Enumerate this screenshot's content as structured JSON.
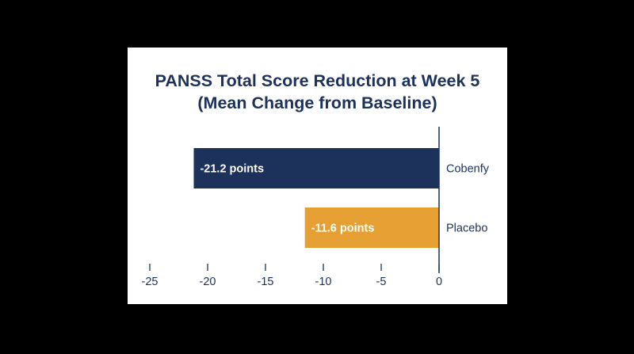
{
  "chart_data": {
    "type": "bar",
    "orientation": "horizontal",
    "title_lines": [
      "PANSS Total Score Reduction at Week 5",
      "(Mean Change from Baseline)"
    ],
    "categories": [
      "Cobenfy",
      "Placebo"
    ],
    "values": [
      -21.2,
      -11.6
    ],
    "data_labels": [
      "-21.2 points",
      "-11.6 points"
    ],
    "colors": [
      "#1c325a",
      "#e59f32"
    ],
    "xlim": [
      -25,
      0
    ],
    "xticks": [
      -25,
      -20,
      -15,
      -10,
      -5,
      0
    ],
    "xlabel": "",
    "ylabel": "",
    "grid": false,
    "legend": "none"
  }
}
